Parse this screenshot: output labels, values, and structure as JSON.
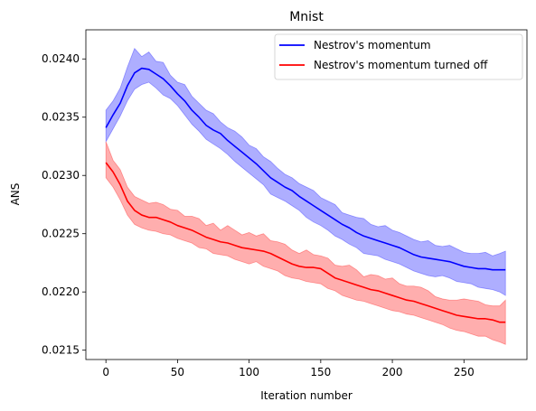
{
  "chart_data": {
    "type": "line",
    "title": "Mnist",
    "xlabel": "Iteration number",
    "ylabel": "ANS",
    "xlim": [
      -14,
      294
    ],
    "ylim": [
      0.02142,
      0.02425
    ],
    "xticks": [
      0,
      50,
      100,
      150,
      200,
      250
    ],
    "yticks": [
      0.0215,
      0.022,
      0.0225,
      0.023,
      0.0235,
      0.024
    ],
    "ytick_labels": [
      "0.0215",
      "0.0220",
      "0.0225",
      "0.0230",
      "0.0235",
      "0.0240"
    ],
    "grid": false,
    "legend_position": "top-right",
    "x": [
      0,
      5,
      10,
      15,
      20,
      25,
      30,
      35,
      40,
      45,
      50,
      55,
      60,
      65,
      70,
      75,
      80,
      85,
      90,
      95,
      100,
      105,
      110,
      115,
      120,
      125,
      130,
      135,
      140,
      145,
      150,
      155,
      160,
      165,
      170,
      175,
      180,
      185,
      190,
      195,
      200,
      205,
      210,
      215,
      220,
      225,
      230,
      235,
      240,
      245,
      250,
      255,
      260,
      265,
      270,
      275,
      279
    ],
    "series": [
      {
        "name": "Nestrov's momentum",
        "color": "#0000ff",
        "fill": "#aaaaff",
        "mean": [
          0.02341,
          0.02352,
          0.02362,
          0.02377,
          0.02388,
          0.02392,
          0.02391,
          0.02387,
          0.02383,
          0.02377,
          0.0237,
          0.02364,
          0.02356,
          0.0235,
          0.02343,
          0.02339,
          0.02336,
          0.0233,
          0.02325,
          0.0232,
          0.02315,
          0.0231,
          0.02304,
          0.02298,
          0.02294,
          0.0229,
          0.02287,
          0.02282,
          0.02278,
          0.02274,
          0.0227,
          0.02266,
          0.02262,
          0.02258,
          0.02255,
          0.02251,
          0.02248,
          0.02246,
          0.02244,
          0.02242,
          0.0224,
          0.02238,
          0.02235,
          0.02232,
          0.0223,
          0.02229,
          0.02228,
          0.02227,
          0.02226,
          0.02224,
          0.02222,
          0.02221,
          0.0222,
          0.0222,
          0.02219,
          0.02219,
          0.02219
        ],
        "upper": [
          0.02356,
          0.02364,
          0.02375,
          0.02393,
          0.02409,
          0.02402,
          0.02406,
          0.02398,
          0.02397,
          0.02386,
          0.0238,
          0.02378,
          0.02368,
          0.02362,
          0.02356,
          0.02353,
          0.02346,
          0.02341,
          0.02338,
          0.02333,
          0.02326,
          0.02323,
          0.02316,
          0.02312,
          0.02306,
          0.02301,
          0.02298,
          0.02293,
          0.0229,
          0.02287,
          0.02281,
          0.02278,
          0.02275,
          0.02268,
          0.02266,
          0.02264,
          0.02263,
          0.02258,
          0.02256,
          0.02257,
          0.02253,
          0.02251,
          0.02248,
          0.02245,
          0.02243,
          0.02244,
          0.0224,
          0.02239,
          0.0224,
          0.02237,
          0.02234,
          0.02233,
          0.02233,
          0.02234,
          0.02231,
          0.02233,
          0.02235
        ],
        "lower": [
          0.02329,
          0.0234,
          0.02351,
          0.02364,
          0.02374,
          0.02378,
          0.0238,
          0.02375,
          0.02369,
          0.02366,
          0.0236,
          0.02352,
          0.02344,
          0.02338,
          0.02331,
          0.02327,
          0.02323,
          0.02318,
          0.02312,
          0.02307,
          0.02302,
          0.02297,
          0.02292,
          0.02284,
          0.02281,
          0.02278,
          0.02274,
          0.0227,
          0.02264,
          0.0226,
          0.02257,
          0.02253,
          0.02248,
          0.02245,
          0.02241,
          0.02238,
          0.02233,
          0.02232,
          0.02231,
          0.02228,
          0.02226,
          0.02224,
          0.02221,
          0.02218,
          0.02216,
          0.02214,
          0.02213,
          0.02214,
          0.02212,
          0.02209,
          0.02208,
          0.02207,
          0.02204,
          0.02203,
          0.02202,
          0.022,
          0.02197
        ]
      },
      {
        "name": "Nestrov's momentum turned off",
        "color": "#ff0000",
        "fill": "#ffaaaa",
        "mean": [
          0.02311,
          0.02303,
          0.02292,
          0.02278,
          0.0227,
          0.02266,
          0.02264,
          0.02264,
          0.02262,
          0.0226,
          0.02257,
          0.02255,
          0.02253,
          0.0225,
          0.02247,
          0.02245,
          0.02243,
          0.02242,
          0.0224,
          0.02238,
          0.02237,
          0.02236,
          0.02235,
          0.02233,
          0.0223,
          0.02227,
          0.02224,
          0.02222,
          0.02221,
          0.02221,
          0.0222,
          0.02216,
          0.02212,
          0.0221,
          0.02208,
          0.02206,
          0.02204,
          0.02202,
          0.02201,
          0.02199,
          0.02197,
          0.02195,
          0.02193,
          0.02192,
          0.0219,
          0.02188,
          0.02186,
          0.02184,
          0.02182,
          0.0218,
          0.02179,
          0.02178,
          0.02177,
          0.02177,
          0.02176,
          0.02174,
          0.02174
        ],
        "upper": [
          0.02329,
          0.02313,
          0.02305,
          0.0229,
          0.02282,
          0.02279,
          0.02276,
          0.02277,
          0.02275,
          0.02271,
          0.0227,
          0.02265,
          0.02265,
          0.02263,
          0.02257,
          0.02259,
          0.02253,
          0.02257,
          0.02253,
          0.02249,
          0.02251,
          0.02248,
          0.0225,
          0.02244,
          0.02243,
          0.02241,
          0.02236,
          0.02233,
          0.02236,
          0.02232,
          0.02231,
          0.02229,
          0.02223,
          0.02222,
          0.02223,
          0.02219,
          0.02213,
          0.02215,
          0.02214,
          0.02211,
          0.02212,
          0.02207,
          0.02205,
          0.02205,
          0.02204,
          0.02201,
          0.02196,
          0.02194,
          0.02193,
          0.02193,
          0.02194,
          0.02193,
          0.02192,
          0.02189,
          0.02188,
          0.02188,
          0.02193
        ],
        "lower": [
          0.02298,
          0.0229,
          0.02279,
          0.02266,
          0.02258,
          0.02255,
          0.02253,
          0.02252,
          0.0225,
          0.02249,
          0.02246,
          0.02244,
          0.02242,
          0.02238,
          0.02237,
          0.02233,
          0.02232,
          0.02231,
          0.02228,
          0.02226,
          0.02224,
          0.02226,
          0.02222,
          0.0222,
          0.02218,
          0.02214,
          0.02212,
          0.02211,
          0.02209,
          0.02208,
          0.02207,
          0.02203,
          0.02201,
          0.02197,
          0.02195,
          0.02193,
          0.02192,
          0.0219,
          0.02188,
          0.02186,
          0.02184,
          0.02183,
          0.02181,
          0.0218,
          0.02178,
          0.02176,
          0.02174,
          0.02172,
          0.02169,
          0.02167,
          0.02166,
          0.02164,
          0.02162,
          0.02162,
          0.02159,
          0.02157,
          0.02155
        ]
      }
    ]
  }
}
